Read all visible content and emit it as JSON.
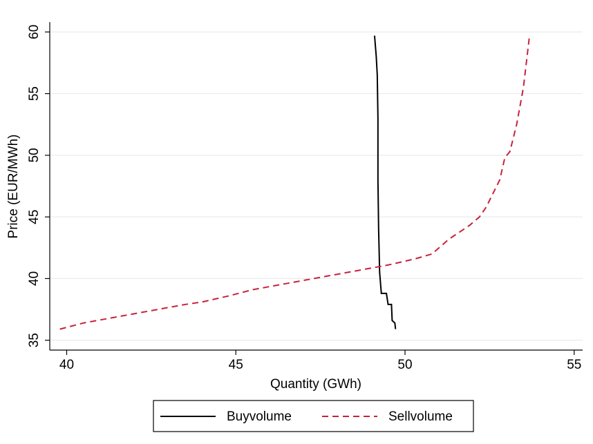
{
  "chart_data": {
    "type": "line",
    "x_label": "Quantity (GWh)",
    "y_label": "Price (EUR/MWh)",
    "xlim": [
      39.5,
      55.25
    ],
    "ylim": [
      34.2,
      60.8
    ],
    "xticks": [
      40,
      45,
      50,
      55
    ],
    "yticks": [
      35,
      40,
      45,
      50,
      55,
      60
    ],
    "grid": true,
    "legend": "bottom",
    "series": [
      {
        "name": "Buyvolume",
        "color": "#000000",
        "dash": "solid",
        "x": [
          49.1,
          49.15,
          49.18,
          49.2,
          49.2,
          49.22,
          49.25,
          49.3,
          49.45,
          49.5,
          49.6,
          49.62,
          49.7,
          49.72
        ],
        "values": [
          59.7,
          58,
          56.5,
          53,
          48,
          44,
          40.5,
          38.8,
          38.8,
          37.9,
          37.9,
          36.6,
          36.4,
          35.9
        ]
      },
      {
        "name": "Sellvolume",
        "color": "#c8203a",
        "dash": "dashed",
        "x": [
          39.8,
          40.5,
          41.5,
          42.5,
          43.5,
          44,
          44.8,
          45.5,
          46.5,
          47.5,
          48.5,
          49.5,
          50.3,
          50.8,
          51.3,
          51.9,
          52.2,
          52.4,
          52.6,
          52.8,
          52.95,
          53.1,
          53.3,
          53.5,
          53.68
        ],
        "values": [
          35.9,
          36.4,
          36.9,
          37.4,
          37.9,
          38.1,
          38.6,
          39.1,
          39.6,
          40.1,
          40.6,
          41.1,
          41.6,
          42,
          43.2,
          44.3,
          45,
          45.8,
          46.9,
          48,
          49.8,
          50.3,
          52.5,
          55.5,
          59.7
        ]
      }
    ]
  }
}
